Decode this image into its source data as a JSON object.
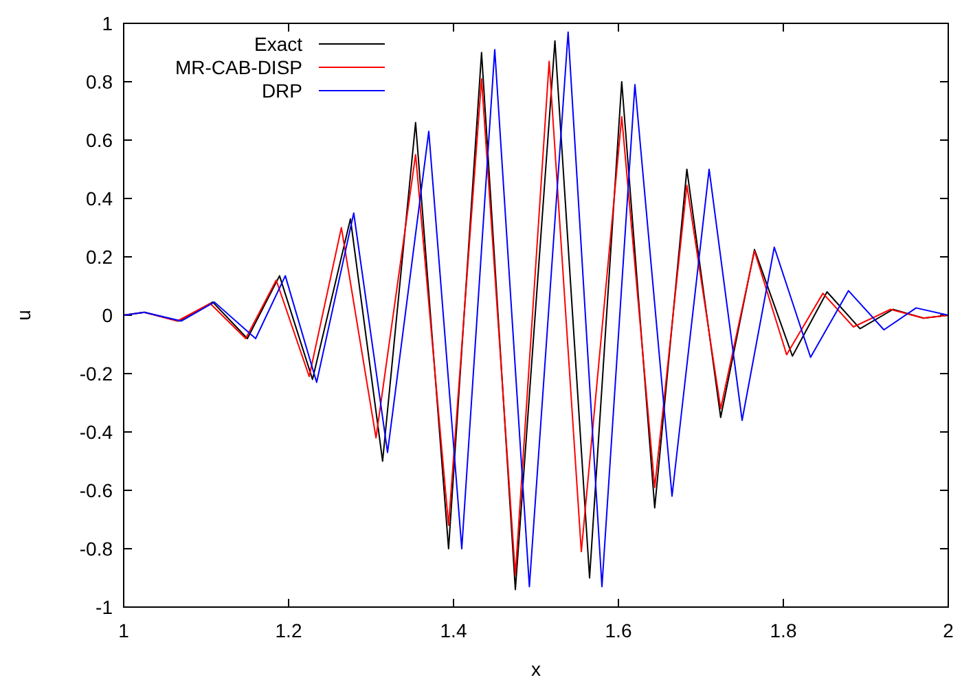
{
  "chart_data": {
    "type": "line",
    "xlabel": "x",
    "ylabel": "u",
    "xlim": [
      1,
      2
    ],
    "ylim": [
      -1,
      1
    ],
    "xticks": [
      1,
      1.2,
      1.4,
      1.6,
      1.8,
      2
    ],
    "yticks": [
      -1,
      -0.8,
      -0.6,
      -0.4,
      -0.2,
      0,
      0.2,
      0.4,
      0.6,
      0.8,
      1
    ],
    "grid": false,
    "legend": "top left",
    "marker": "none",
    "line_style": "solid",
    "series": [
      {
        "name": "Exact",
        "color": "#000000",
        "x": [
          1,
          1.025,
          1.067,
          1.108,
          1.15,
          1.189,
          1.229,
          1.275,
          1.314,
          1.354,
          1.394,
          1.434,
          1.475,
          1.523,
          1.565,
          1.604,
          1.644,
          1.683,
          1.724,
          1.765,
          1.811,
          1.853,
          1.893,
          1.933,
          1.97,
          2
        ],
        "values": [
          0,
          0.01,
          -0.02,
          0.045,
          -0.08,
          0.135,
          -0.22,
          0.33,
          -0.5,
          0.66,
          -0.8,
          0.9,
          -0.94,
          0.94,
          -0.9,
          0.8,
          -0.66,
          0.5,
          -0.35,
          0.225,
          -0.14,
          0.08,
          -0.046,
          0.02,
          -0.01,
          0
        ]
      },
      {
        "name": "MR-CAB-DISP",
        "color": "#ff0000",
        "x": [
          1,
          1.025,
          1.065,
          1.105,
          1.148,
          1.185,
          1.225,
          1.264,
          1.306,
          1.354,
          1.394,
          1.434,
          1.475,
          1.516,
          1.555,
          1.604,
          1.644,
          1.683,
          1.724,
          1.765,
          1.804,
          1.848,
          1.885,
          1.93,
          1.97,
          2
        ],
        "values": [
          0,
          0.01,
          -0.02,
          0.04,
          -0.08,
          0.12,
          -0.21,
          0.3,
          -0.42,
          0.55,
          -0.72,
          0.81,
          -0.89,
          0.87,
          -0.81,
          0.68,
          -0.59,
          0.445,
          -0.32,
          0.22,
          -0.135,
          0.075,
          -0.04,
          0.02,
          -0.01,
          0
        ]
      },
      {
        "name": "DRP",
        "color": "#0000ff",
        "x": [
          1,
          1.025,
          1.07,
          1.11,
          1.16,
          1.196,
          1.234,
          1.279,
          1.32,
          1.37,
          1.41,
          1.45,
          1.492,
          1.539,
          1.58,
          1.62,
          1.665,
          1.71,
          1.75,
          1.789,
          1.833,
          1.879,
          1.922,
          1.961,
          2
        ],
        "values": [
          0,
          0.01,
          -0.02,
          0.045,
          -0.08,
          0.135,
          -0.23,
          0.35,
          -0.47,
          0.63,
          -0.8,
          0.91,
          -0.93,
          0.97,
          -0.93,
          0.79,
          -0.62,
          0.5,
          -0.36,
          0.233,
          -0.144,
          0.084,
          -0.05,
          0.025,
          0
        ]
      }
    ]
  }
}
